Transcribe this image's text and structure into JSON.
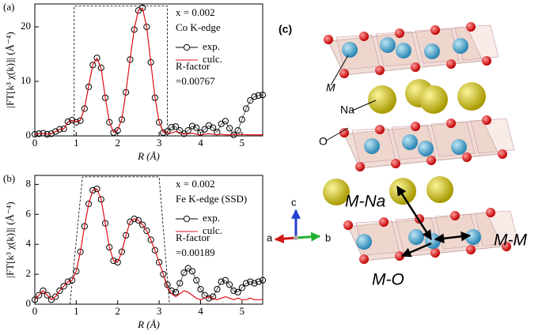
{
  "chart_data": [
    {
      "type": "line",
      "panel_label": "(a)",
      "xlabel": "R (Å)",
      "ylabel": "|FT[k³ χ(k)]| (Å⁻⁴)",
      "annotations": [
        "x = 0.002",
        "Co K-edge",
        "R-factor",
        "=0.00767"
      ],
      "legend": "upper right",
      "x": [
        0,
        0.1,
        0.2,
        0.3,
        0.4,
        0.5,
        0.6,
        0.7,
        0.8,
        0.9,
        1.0,
        1.1,
        1.2,
        1.3,
        1.4,
        1.5,
        1.6,
        1.7,
        1.8,
        1.9,
        2.0,
        2.1,
        2.2,
        2.3,
        2.4,
        2.5,
        2.6,
        2.7,
        2.8,
        2.9,
        3.0,
        3.1,
        3.2,
        3.3,
        3.4,
        3.5,
        3.6,
        3.7,
        3.8,
        3.9,
        4.0,
        4.1,
        4.2,
        4.3,
        4.4,
        4.5,
        4.6,
        4.7,
        4.8,
        4.9,
        5.0,
        5.1,
        5.2,
        5.3,
        5.4,
        5.5
      ],
      "series": [
        {
          "name": "exp.",
          "color": "#000000",
          "marker": "circle",
          "values": [
            0.3,
            0.4,
            0.5,
            0.3,
            0.4,
            0.8,
            1.2,
            1.3,
            2.6,
            2.9,
            2.5,
            2.8,
            5,
            9,
            13,
            14.3,
            12.5,
            7,
            2.5,
            0.6,
            1.0,
            3.0,
            8,
            14,
            19.5,
            23,
            23.5,
            20,
            13.5,
            7,
            2.5,
            0.6,
            0.8,
            1.6,
            1.7,
            1.0,
            0.4,
            1.0,
            1.8,
            1.5,
            0.6,
            1.2,
            1.9,
            1.5,
            0.7,
            2.2,
            2.7,
            1.4,
            0.2,
            1.0,
            3.0,
            5.0,
            6.5,
            7.2,
            7.4,
            7.5
          ]
        },
        {
          "name": "culc.",
          "color": "#e0101a",
          "values": [
            0.3,
            0.4,
            0.5,
            0.3,
            0.4,
            0.8,
            1.2,
            1.3,
            2.5,
            2.8,
            2.6,
            2.9,
            5.1,
            9.2,
            13.1,
            14.2,
            12.4,
            7.1,
            2.6,
            0.7,
            1.1,
            3.1,
            8.1,
            14.1,
            19.6,
            23.1,
            23.4,
            19.9,
            13.4,
            7.1,
            2.6,
            0.8,
            0.6,
            0.5,
            0.8,
            0.6,
            0.3,
            0.4,
            0.5,
            0.3,
            0.2,
            0.3,
            0.4,
            0.3,
            0.2,
            0.3,
            0.2,
            0.2,
            0.3,
            0.2,
            0.3,
            0.2,
            0.2,
            0.2,
            0.2,
            0.2
          ]
        }
      ],
      "window": {
        "x": [
          0.95,
          0.95,
          3.2,
          3.2
        ],
        "y": [
          0,
          23.8,
          23.8,
          0
        ]
      },
      "xlim": [
        0,
        5.5
      ],
      "ylim": [
        0,
        24.2
      ],
      "xticks": [
        0,
        1,
        2,
        3,
        4,
        5
      ],
      "yticks": [
        0,
        10,
        20
      ]
    },
    {
      "type": "line",
      "panel_label": "(b)",
      "xlabel": "R (Å)",
      "ylabel": "|FT[k³ χ(k)]| (Å⁻⁴)",
      "annotations": [
        "x = 0.002",
        "Fe K-edge (SSD)",
        "R-factor",
        "=0.00189"
      ],
      "legend": "upper right",
      "x": [
        0,
        0.1,
        0.2,
        0.3,
        0.4,
        0.5,
        0.6,
        0.7,
        0.8,
        0.9,
        1.0,
        1.1,
        1.2,
        1.3,
        1.4,
        1.5,
        1.6,
        1.7,
        1.8,
        1.9,
        2.0,
        2.1,
        2.2,
        2.3,
        2.4,
        2.5,
        2.6,
        2.7,
        2.8,
        2.9,
        3.0,
        3.1,
        3.2,
        3.3,
        3.4,
        3.5,
        3.6,
        3.7,
        3.8,
        3.9,
        4.0,
        4.1,
        4.2,
        4.3,
        4.4,
        4.5,
        4.6,
        4.7,
        4.8,
        4.9,
        5.0,
        5.1,
        5.2,
        5.3,
        5.4,
        5.5
      ],
      "series": [
        {
          "name": "exp.",
          "color": "#000000",
          "marker": "circle",
          "values": [
            0.3,
            0.6,
            0.9,
            0.6,
            0.3,
            0.5,
            0.9,
            1.2,
            1.5,
            1.6,
            2.2,
            3.5,
            5.2,
            6.7,
            7.6,
            7.7,
            7.0,
            5.4,
            3.8,
            2.9,
            2.8,
            3.5,
            4.6,
            5.5,
            5.7,
            5.6,
            5.3,
            4.9,
            4.3,
            3.6,
            2.8,
            2.0,
            1.3,
            0.9,
            0.8,
            1.4,
            2.1,
            2.4,
            2.2,
            1.6,
            1.0,
            0.6,
            0.4,
            0.5,
            1.0,
            1.5,
            1.6,
            1.3,
            0.9,
            0.8,
            1.1,
            1.4,
            1.5,
            1.4,
            1.5,
            1.6
          ]
        },
        {
          "name": "culc.",
          "color": "#e0101a",
          "values": [
            0.3,
            0.6,
            0.9,
            0.6,
            0.3,
            0.5,
            0.9,
            1.2,
            1.5,
            1.6,
            2.2,
            3.5,
            5.2,
            6.7,
            7.6,
            7.7,
            7.0,
            5.4,
            3.8,
            2.9,
            2.8,
            3.5,
            4.6,
            5.5,
            5.7,
            5.6,
            5.3,
            4.9,
            4.3,
            3.6,
            2.8,
            2.0,
            1.1,
            0.7,
            0.5,
            0.7,
            0.9,
            0.8,
            0.6,
            0.4,
            0.3,
            0.4,
            0.5,
            0.4,
            0.3,
            0.4,
            0.5,
            0.4,
            0.3,
            0.4,
            0.3,
            0.3,
            0.4,
            0.3,
            0.3,
            0.3
          ]
        }
      ],
      "window": {
        "x": [
          0.85,
          1.15,
          3.0,
          3.25
        ],
        "y": [
          0,
          8.5,
          8.5,
          0
        ]
      },
      "xlim": [
        0,
        5.5
      ],
      "ylim": [
        0,
        8.6
      ],
      "xticks": [
        0,
        1,
        2,
        3,
        4,
        5
      ],
      "yticks": [
        0,
        2,
        4,
        6,
        8
      ]
    }
  ],
  "diagram": {
    "panel_label": "(c)",
    "labels": {
      "m": "M",
      "na": "Na",
      "o": "O",
      "m_na": "M-Na",
      "m_m": "M-M",
      "m_o": "M-O"
    },
    "axes": {
      "a": "a",
      "b": "b",
      "c": "c"
    }
  }
}
